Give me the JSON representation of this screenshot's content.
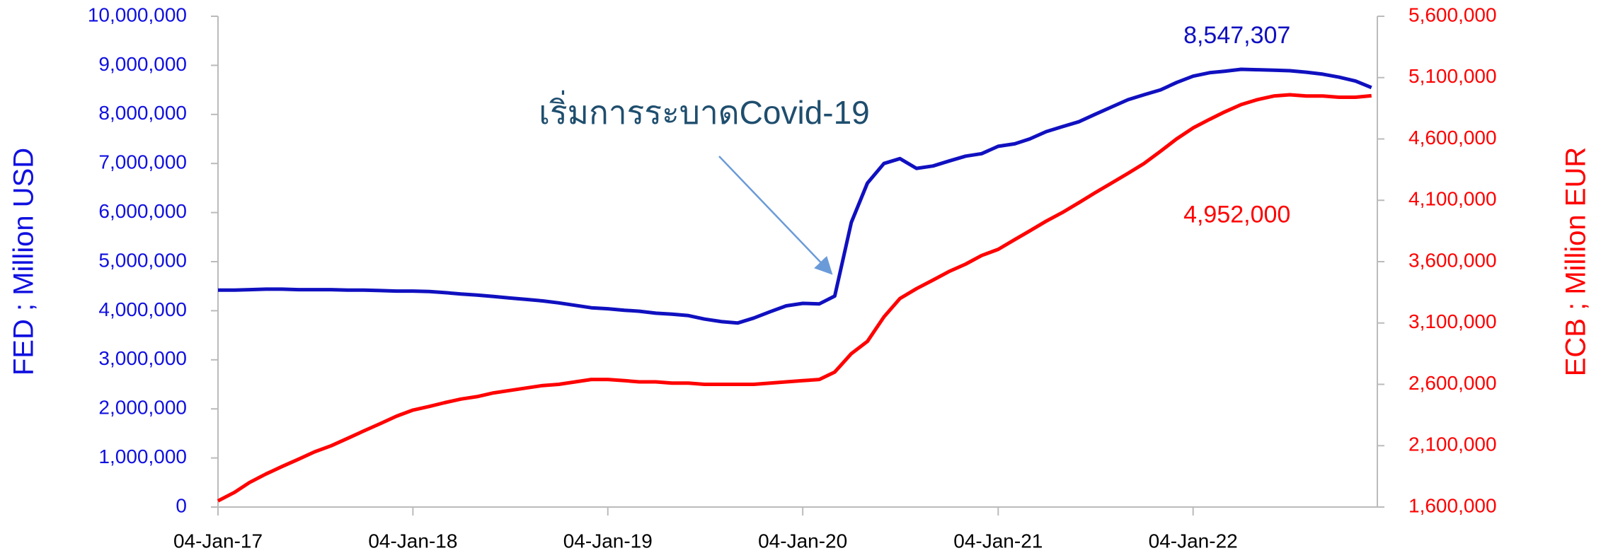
{
  "chart_data": {
    "type": "line",
    "annotations": [
      "เริ่มการระบาดCovid-19"
    ],
    "y_label": "FED ; Million USD",
    "y2_label": "ECB ; Million EUR",
    "x": [
      "2017-01-04",
      "2017-02-04",
      "2017-03-04",
      "2017-04-04",
      "2017-05-04",
      "2017-06-04",
      "2017-07-04",
      "2017-08-04",
      "2017-09-04",
      "2017-10-04",
      "2017-11-04",
      "2017-12-04",
      "2018-01-04",
      "2018-02-04",
      "2018-03-04",
      "2018-04-04",
      "2018-05-04",
      "2018-06-04",
      "2018-07-04",
      "2018-08-04",
      "2018-09-04",
      "2018-10-04",
      "2018-11-04",
      "2018-12-04",
      "2019-01-04",
      "2019-02-04",
      "2019-03-04",
      "2019-04-04",
      "2019-05-04",
      "2019-06-04",
      "2019-07-04",
      "2019-08-04",
      "2019-09-04",
      "2019-10-04",
      "2019-11-04",
      "2019-12-04",
      "2020-01-04",
      "2020-02-04",
      "2020-03-04",
      "2020-04-04",
      "2020-05-04",
      "2020-06-04",
      "2020-07-04",
      "2020-08-04",
      "2020-09-04",
      "2020-10-04",
      "2020-11-04",
      "2020-12-04",
      "2021-01-04",
      "2021-02-04",
      "2021-03-04",
      "2021-04-04",
      "2021-05-04",
      "2021-06-04",
      "2021-07-04",
      "2021-08-04",
      "2021-09-04",
      "2021-10-04",
      "2021-11-04",
      "2021-12-04",
      "2022-01-04",
      "2022-02-04",
      "2022-03-04",
      "2022-04-04",
      "2022-05-04",
      "2022-06-04",
      "2022-07-04",
      "2022-08-04",
      "2022-09-04",
      "2022-10-04",
      "2022-11-04",
      "2022-12-04"
    ],
    "series": [
      {
        "name": "FED",
        "color": "#1010c0",
        "axis": "y",
        "values": [
          4420000,
          4420000,
          4430000,
          4440000,
          4440000,
          4430000,
          4430000,
          4430000,
          4420000,
          4420000,
          4410000,
          4400000,
          4400000,
          4390000,
          4370000,
          4340000,
          4320000,
          4290000,
          4260000,
          4230000,
          4200000,
          4160000,
          4110000,
          4060000,
          4040000,
          4010000,
          3990000,
          3950000,
          3930000,
          3900000,
          3830000,
          3780000,
          3750000,
          3850000,
          3980000,
          4100000,
          4150000,
          4140000,
          4300000,
          5800000,
          6600000,
          7000000,
          7100000,
          6900000,
          6950000,
          7050000,
          7150000,
          7200000,
          7350000,
          7400000,
          7500000,
          7650000,
          7750000,
          7850000,
          8000000,
          8150000,
          8300000,
          8400000,
          8500000,
          8650000,
          8780000,
          8850000,
          8880000,
          8920000,
          8910000,
          8900000,
          8890000,
          8860000,
          8820000,
          8760000,
          8680000,
          8547307
        ],
        "value_labels": [
          null,
          null,
          null,
          null,
          null,
          null,
          null,
          null,
          null,
          null,
          null,
          null,
          null,
          null,
          null,
          null,
          null,
          null,
          null,
          null,
          null,
          null,
          null,
          null,
          null,
          null,
          null,
          null,
          null,
          null,
          null,
          null,
          null,
          null,
          null,
          null,
          null,
          null,
          null,
          null,
          null,
          null,
          null,
          null,
          null,
          null,
          null,
          null,
          null,
          null,
          null,
          null,
          null,
          null,
          null,
          null,
          null,
          null,
          null,
          null,
          null,
          null,
          null,
          null,
          null,
          null,
          null,
          null,
          null,
          null,
          null,
          "8,547,307"
        ]
      },
      {
        "name": "ECB",
        "color": "#ff0000",
        "axis": "y2",
        "values": [
          1650000,
          1720000,
          1800000,
          1870000,
          1930000,
          1990000,
          2050000,
          2100000,
          2160000,
          2220000,
          2280000,
          2340000,
          2390000,
          2420000,
          2450000,
          2480000,
          2500000,
          2530000,
          2550000,
          2570000,
          2590000,
          2600000,
          2620000,
          2640000,
          2640000,
          2630000,
          2620000,
          2620000,
          2610000,
          2610000,
          2600000,
          2600000,
          2600000,
          2600000,
          2610000,
          2620000,
          2630000,
          2640000,
          2700000,
          2850000,
          2950000,
          3150000,
          3300000,
          3380000,
          3450000,
          3520000,
          3580000,
          3650000,
          3700000,
          3780000,
          3850000,
          3930000,
          4000000,
          4080000,
          4160000,
          4240000,
          4320000,
          4400000,
          4500000,
          4600000,
          4690000,
          4760000,
          4820000,
          4880000,
          4920000,
          4950000,
          4960000,
          4950000,
          4950000,
          4940000,
          4940000,
          4952000
        ],
        "value_labels": [
          null,
          null,
          null,
          null,
          null,
          null,
          null,
          null,
          null,
          null,
          null,
          null,
          null,
          null,
          null,
          null,
          null,
          null,
          null,
          null,
          null,
          null,
          null,
          null,
          null,
          null,
          null,
          null,
          null,
          null,
          null,
          null,
          null,
          null,
          null,
          null,
          null,
          null,
          null,
          null,
          null,
          null,
          null,
          null,
          null,
          null,
          null,
          null,
          null,
          null,
          null,
          null,
          null,
          null,
          null,
          null,
          null,
          null,
          null,
          null,
          null,
          null,
          null,
          null,
          null,
          null,
          null,
          null,
          null,
          null,
          null,
          "4,952,000"
        ]
      }
    ],
    "xlim": [
      "2017-01-04",
      "2022-12-15"
    ],
    "xticks": [
      {
        "value": "2017-01-04",
        "label": "04-Jan-17"
      },
      {
        "value": "2018-01-04",
        "label": "04-Jan-18"
      },
      {
        "value": "2019-01-04",
        "label": "04-Jan-19"
      },
      {
        "value": "2020-01-04",
        "label": "04-Jan-20"
      },
      {
        "value": "2021-01-04",
        "label": "04-Jan-21"
      },
      {
        "value": "2022-01-04",
        "label": "04-Jan-22"
      }
    ],
    "ylim": [
      0,
      10000000
    ],
    "yticks": [
      0,
      {
        "value": 1000000,
        "label": "1,000,000"
      },
      {
        "value": 2000000,
        "label": "2,000,000"
      },
      {
        "value": 3000000,
        "label": "3,000,000"
      },
      {
        "value": 4000000,
        "label": "4,000,000"
      },
      {
        "value": 5000000,
        "label": "5,000,000"
      },
      {
        "value": 6000000,
        "label": "6,000,000"
      },
      {
        "value": 7000000,
        "label": "7,000,000"
      },
      {
        "value": 8000000,
        "label": "8,000,000"
      },
      {
        "value": 9000000,
        "label": "9,000,000"
      },
      {
        "value": 10000000,
        "label": "10,000,000"
      }
    ],
    "y2lim": [
      1600000,
      5600000
    ],
    "y2ticks": [
      {
        "value": 1600000,
        "label": "1,600,000"
      },
      {
        "value": 2100000,
        "label": "2,100,000"
      },
      {
        "value": 2600000,
        "label": "2,600,000"
      },
      {
        "value": 3100000,
        "label": "3,100,000"
      },
      {
        "value": 3600000,
        "label": "3,600,000"
      },
      {
        "value": 4100000,
        "label": "4,100,000"
      },
      {
        "value": 4600000,
        "label": "4,600,000"
      },
      {
        "value": 5100000,
        "label": "5,100,000"
      },
      {
        "value": 5600000,
        "label": "5,600,000"
      }
    ]
  }
}
